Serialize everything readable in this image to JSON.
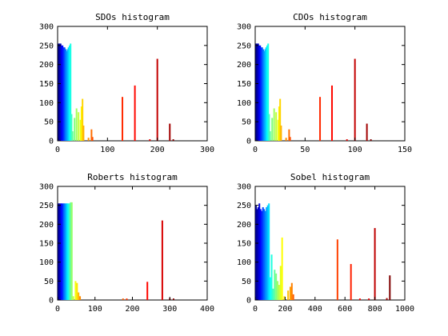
{
  "chart_data": [
    {
      "type": "bar",
      "title": "SDOs histogram",
      "xlim": [
        0,
        300
      ],
      "ylim": [
        0,
        300
      ],
      "xticks": [
        0,
        100,
        200,
        300
      ],
      "yticks": [
        0,
        50,
        100,
        150,
        200,
        250,
        300
      ],
      "grid": false,
      "colormap": "jet",
      "bars": [
        {
          "x": 2,
          "y": 255
        },
        {
          "x": 4,
          "y": 255
        },
        {
          "x": 6,
          "y": 255
        },
        {
          "x": 8,
          "y": 250
        },
        {
          "x": 10,
          "y": 250
        },
        {
          "x": 12,
          "y": 245
        },
        {
          "x": 14,
          "y": 245
        },
        {
          "x": 16,
          "y": 240
        },
        {
          "x": 18,
          "y": 235
        },
        {
          "x": 20,
          "y": 240
        },
        {
          "x": 22,
          "y": 245
        },
        {
          "x": 24,
          "y": 250
        },
        {
          "x": 26,
          "y": 255
        },
        {
          "x": 28,
          "y": 70
        },
        {
          "x": 30,
          "y": 25
        },
        {
          "x": 34,
          "y": 60
        },
        {
          "x": 38,
          "y": 85
        },
        {
          "x": 42,
          "y": 75
        },
        {
          "x": 46,
          "y": 55
        },
        {
          "x": 48,
          "y": 90
        },
        {
          "x": 50,
          "y": 110
        },
        {
          "x": 52,
          "y": 40
        },
        {
          "x": 62,
          "y": 8
        },
        {
          "x": 68,
          "y": 30
        },
        {
          "x": 70,
          "y": 10
        },
        {
          "x": 130,
          "y": 115
        },
        {
          "x": 155,
          "y": 145
        },
        {
          "x": 185,
          "y": 4
        },
        {
          "x": 200,
          "y": 215
        },
        {
          "x": 225,
          "y": 45
        },
        {
          "x": 232,
          "y": 4
        }
      ]
    },
    {
      "type": "bar",
      "title": "CDOs histogram",
      "xlim": [
        0,
        150
      ],
      "ylim": [
        0,
        300
      ],
      "xticks": [
        0,
        50,
        100,
        150
      ],
      "yticks": [
        0,
        50,
        100,
        150,
        200,
        250,
        300
      ],
      "grid": false,
      "colormap": "jet",
      "bars": [
        {
          "x": 1,
          "y": 255
        },
        {
          "x": 2,
          "y": 255
        },
        {
          "x": 3,
          "y": 255
        },
        {
          "x": 4,
          "y": 250
        },
        {
          "x": 5,
          "y": 250
        },
        {
          "x": 6,
          "y": 245
        },
        {
          "x": 7,
          "y": 245
        },
        {
          "x": 8,
          "y": 240
        },
        {
          "x": 9,
          "y": 235
        },
        {
          "x": 10,
          "y": 240
        },
        {
          "x": 11,
          "y": 245
        },
        {
          "x": 12,
          "y": 250
        },
        {
          "x": 13,
          "y": 255
        },
        {
          "x": 14,
          "y": 70
        },
        {
          "x": 15,
          "y": 25
        },
        {
          "x": 17,
          "y": 60
        },
        {
          "x": 19,
          "y": 85
        },
        {
          "x": 21,
          "y": 75
        },
        {
          "x": 23,
          "y": 55
        },
        {
          "x": 24,
          "y": 90
        },
        {
          "x": 25,
          "y": 110
        },
        {
          "x": 26,
          "y": 40
        },
        {
          "x": 31,
          "y": 8
        },
        {
          "x": 34,
          "y": 30
        },
        {
          "x": 35,
          "y": 10
        },
        {
          "x": 65,
          "y": 115
        },
        {
          "x": 77,
          "y": 145
        },
        {
          "x": 92,
          "y": 4
        },
        {
          "x": 100,
          "y": 215
        },
        {
          "x": 112,
          "y": 45
        },
        {
          "x": 116,
          "y": 4
        }
      ]
    },
    {
      "type": "bar",
      "title": "Roberts histogram",
      "xlim": [
        0,
        400
      ],
      "ylim": [
        0,
        300
      ],
      "xticks": [
        0,
        100,
        200,
        300,
        400
      ],
      "yticks": [
        0,
        50,
        100,
        150,
        200,
        250,
        300
      ],
      "grid": false,
      "colormap": "jet",
      "bars": [
        {
          "x": 2,
          "y": 255
        },
        {
          "x": 5,
          "y": 255
        },
        {
          "x": 8,
          "y": 255
        },
        {
          "x": 11,
          "y": 255
        },
        {
          "x": 14,
          "y": 255
        },
        {
          "x": 17,
          "y": 255
        },
        {
          "x": 20,
          "y": 255
        },
        {
          "x": 23,
          "y": 255
        },
        {
          "x": 26,
          "y": 255
        },
        {
          "x": 29,
          "y": 255
        },
        {
          "x": 32,
          "y": 255
        },
        {
          "x": 35,
          "y": 258
        },
        {
          "x": 38,
          "y": 258
        },
        {
          "x": 42,
          "y": 10
        },
        {
          "x": 48,
          "y": 50
        },
        {
          "x": 52,
          "y": 45
        },
        {
          "x": 56,
          "y": 20
        },
        {
          "x": 60,
          "y": 10
        },
        {
          "x": 175,
          "y": 4
        },
        {
          "x": 185,
          "y": 4
        },
        {
          "x": 240,
          "y": 48
        },
        {
          "x": 280,
          "y": 210
        },
        {
          "x": 300,
          "y": 5
        },
        {
          "x": 310,
          "y": 4
        }
      ]
    },
    {
      "type": "bar",
      "title": "Sobel histogram",
      "xlim": [
        0,
        1000
      ],
      "ylim": [
        0,
        300
      ],
      "xticks": [
        0,
        200,
        400,
        600,
        800,
        1000
      ],
      "yticks": [
        0,
        50,
        100,
        150,
        200,
        250,
        300
      ],
      "grid": false,
      "colormap": "jet",
      "bars": [
        {
          "x": 5,
          "y": 250
        },
        {
          "x": 12,
          "y": 240
        },
        {
          "x": 20,
          "y": 245
        },
        {
          "x": 28,
          "y": 255
        },
        {
          "x": 36,
          "y": 240
        },
        {
          "x": 44,
          "y": 235
        },
        {
          "x": 52,
          "y": 245
        },
        {
          "x": 60,
          "y": 240
        },
        {
          "x": 68,
          "y": 235
        },
        {
          "x": 76,
          "y": 245
        },
        {
          "x": 84,
          "y": 250
        },
        {
          "x": 92,
          "y": 255
        },
        {
          "x": 100,
          "y": 60
        },
        {
          "x": 110,
          "y": 120
        },
        {
          "x": 120,
          "y": 30
        },
        {
          "x": 130,
          "y": 80
        },
        {
          "x": 140,
          "y": 70
        },
        {
          "x": 150,
          "y": 50
        },
        {
          "x": 160,
          "y": 40
        },
        {
          "x": 170,
          "y": 90
        },
        {
          "x": 180,
          "y": 165
        },
        {
          "x": 195,
          "y": 10
        },
        {
          "x": 220,
          "y": 25
        },
        {
          "x": 235,
          "y": 35
        },
        {
          "x": 245,
          "y": 45
        },
        {
          "x": 255,
          "y": 15
        },
        {
          "x": 550,
          "y": 160
        },
        {
          "x": 640,
          "y": 95
        },
        {
          "x": 700,
          "y": 4
        },
        {
          "x": 760,
          "y": 4
        },
        {
          "x": 800,
          "y": 190
        },
        {
          "x": 880,
          "y": 5
        },
        {
          "x": 900,
          "y": 65
        }
      ]
    }
  ]
}
